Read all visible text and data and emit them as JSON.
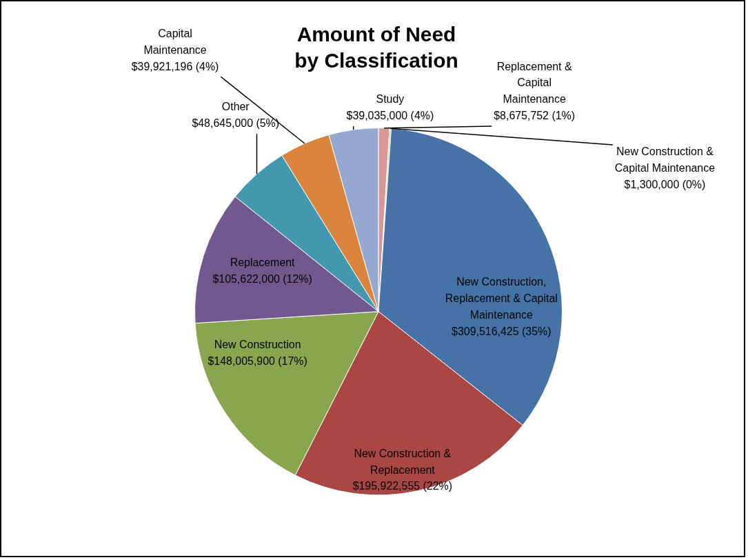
{
  "chart_data": {
    "type": "pie",
    "title": "Amount of Need by Classification",
    "categories": [
      "Replacement & Capital Maintenance",
      "New Construction & Capital Maintenance",
      "New Construction, Replacement & Capital Maintenance",
      "New Construction & Replacement",
      "New Construction",
      "Replacement",
      "Other",
      "Capital Maintenance",
      "Study"
    ],
    "values": [
      8675752,
      1300000,
      309516425,
      195922555,
      148005900,
      105622000,
      48645000,
      39921196,
      39035000
    ],
    "colors": [
      "#d99694",
      "#c3d69b",
      "#4573a7",
      "#aa4643",
      "#89a54e",
      "#71588f",
      "#4198af",
      "#db843d",
      "#93a9cf"
    ],
    "value_labels": [
      "$8,675,752 (1%)",
      "$1,300,000 (0%)",
      "$309,516,425 (35%)",
      "$195,922,555 (22%)",
      "$148,005,900 (17%)",
      "$105,622,000 (12%)",
      "$48,645,000 (5%)",
      "$39,921,196 (4%)",
      "$39,035,000 (4%)"
    ],
    "legend": false
  }
}
